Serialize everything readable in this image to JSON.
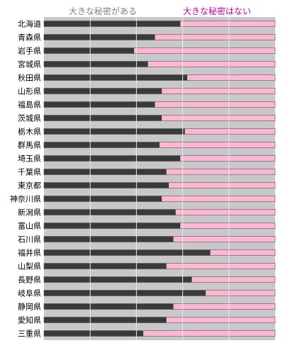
{
  "chart_data": {
    "type": "bar",
    "stacked": true,
    "orientation": "horizontal",
    "legend_position": "top",
    "grid": true,
    "xlim": [
      0,
      100
    ],
    "categories": [
      "北海道",
      "青森県",
      "岩手県",
      "宮城県",
      "秋田県",
      "山形県",
      "福島県",
      "茨城県",
      "栃木県",
      "群馬県",
      "埼玉県",
      "千葉県",
      "東京都",
      "神奈川県",
      "新潟県",
      "富山県",
      "石川県",
      "福井県",
      "山梨県",
      "長野県",
      "岐阜県",
      "静岡県",
      "愛知県",
      "三重県"
    ],
    "series": [
      {
        "name": "大きな秘密がある",
        "color": "#3a3a3a",
        "values": [
          59,
          48,
          39,
          45,
          62,
          51,
          48,
          51,
          61,
          50,
          59,
          53,
          54,
          51,
          57,
          59,
          56,
          72,
          53,
          64,
          70,
          56,
          53,
          43
        ]
      },
      {
        "name": "大きな秘密はない",
        "color": "#ffb6d5",
        "values": [
          41,
          52,
          61,
          55,
          38,
          49,
          52,
          49,
          39,
          50,
          41,
          47,
          46,
          49,
          43,
          41,
          44,
          28,
          47,
          36,
          30,
          44,
          47,
          57
        ]
      }
    ]
  },
  "legend_colors": {
    "label_0": "#808080",
    "label_1": "#cc0099",
    "track": "#c8c8c8",
    "gridline": "#e8e8e8"
  }
}
